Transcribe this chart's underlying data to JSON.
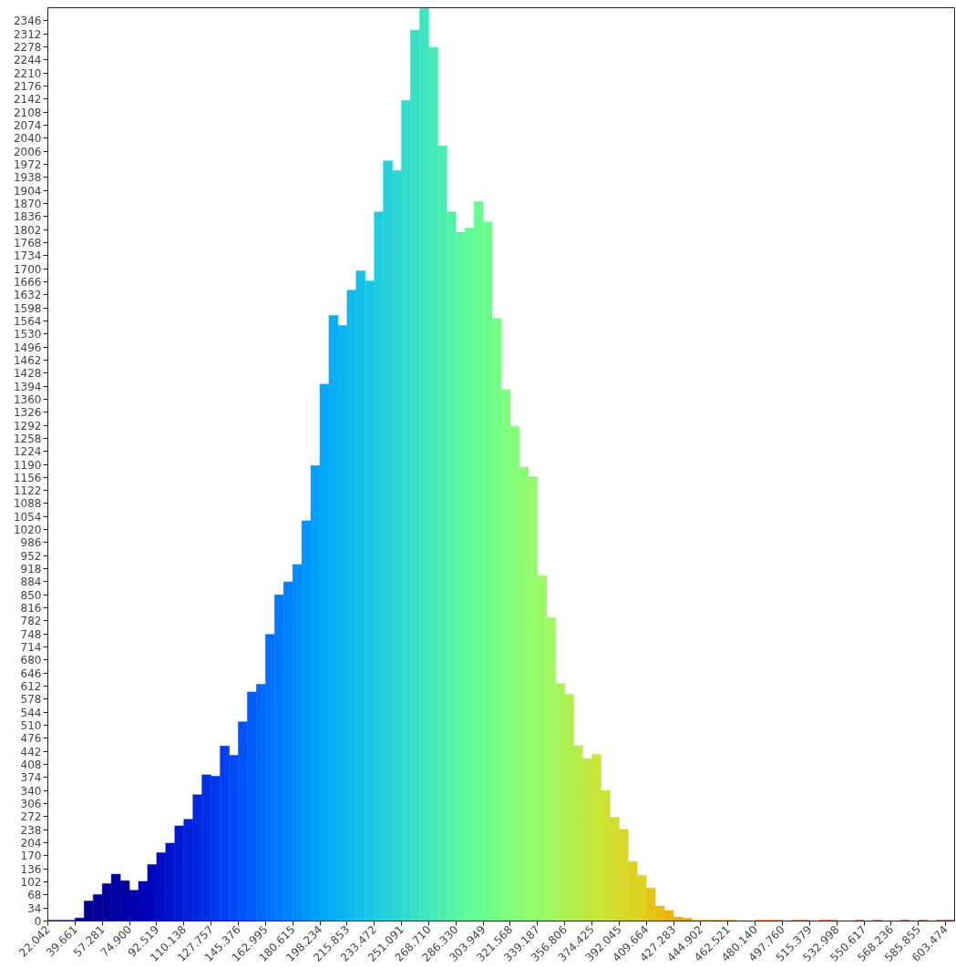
{
  "chart_data": {
    "type": "histogram",
    "bins": [
      22.042,
      27.915,
      33.788,
      39.661,
      45.534,
      51.407,
      57.281,
      63.153,
      69.026,
      74.9,
      80.773,
      86.646,
      92.519,
      98.392,
      104.265,
      110.138,
      116.011,
      121.884,
      127.757,
      133.63,
      139.503,
      145.376,
      151.249,
      157.122,
      162.995,
      168.868,
      174.741,
      180.615,
      186.487,
      192.36,
      198.234,
      204.107,
      209.98,
      215.853,
      221.726,
      227.599,
      233.472,
      239.345,
      245.218,
      251.091,
      256.964,
      262.837,
      268.71,
      274.583,
      280.456,
      286.33,
      292.202,
      298.075,
      303.949,
      309.821,
      315.695,
      321.568,
      327.441,
      333.314,
      339.187,
      345.06,
      350.933,
      356.806,
      362.679,
      368.552,
      374.425,
      380.298,
      386.171,
      392.045,
      397.917,
      403.79,
      409.664,
      415.536,
      421.409,
      427.283,
      433.155,
      439.029,
      444.902,
      450.775,
      456.648,
      462.521,
      468.394,
      474.267,
      480.14,
      486.013,
      491.886,
      497.76,
      503.632,
      509.505,
      515.379,
      521.251,
      527.124,
      532.998,
      538.87,
      544.743,
      550.617,
      556.49,
      562.363,
      568.236,
      574.109,
      579.982,
      585.855,
      591.728,
      597.601,
      603.474,
      609.347
    ],
    "values": [
      2,
      2,
      2,
      8,
      52,
      69,
      97,
      122,
      105,
      80,
      103,
      147,
      178,
      203,
      248,
      265,
      329,
      381,
      377,
      456,
      432,
      519,
      597,
      617,
      747,
      850,
      884,
      929,
      1043,
      1187,
      1399,
      1578,
      1552,
      1644,
      1694,
      1668,
      1848,
      1981,
      1956,
      2138,
      2322,
      2378,
      2277,
      2020,
      1848,
      1795,
      1806,
      1875,
      1822,
      1570,
      1385,
      1289,
      1183,
      1158,
      900,
      790,
      619,
      591,
      457,
      423,
      434,
      340,
      270,
      239,
      155,
      119,
      86,
      39,
      27,
      10,
      7,
      2,
      2,
      2,
      2,
      2,
      0,
      0,
      2,
      2,
      2,
      0,
      2,
      2,
      0,
      2,
      2,
      0,
      0,
      2,
      0,
      2,
      0,
      0,
      2,
      0,
      2,
      0,
      2,
      2
    ],
    "colors": [
      "#000080",
      "#000084",
      "#000088",
      "#00008c",
      "#000090",
      "#000096",
      "#00009c",
      "#0000a2",
      "#0000a8",
      "#0000ae",
      "#0000b4",
      "#0006bb",
      "#000dc2",
      "#0013c9",
      "#001ad1",
      "#0020d8",
      "#0028df",
      "#0030e6",
      "#0038ed",
      "#0040f4",
      "#0048f8",
      "#0052f9",
      "#005cfb",
      "#0066fc",
      "#0070fe",
      "#0078ff",
      "#0082fe",
      "#008cfc",
      "#0096fb",
      "#00a0f9",
      "#00a8f8",
      "#05aef5",
      "#0ab4f2",
      "#0ebbee",
      "#13c1eb",
      "#18c8e8",
      "#1ecde1",
      "#25d2db",
      "#2bd6d4",
      "#32dbce",
      "#38e0c8",
      "#3ee5c0",
      "#44eab8",
      "#4beeb0",
      "#51f3a8",
      "#58f8a0",
      "#5ffa9a",
      "#66fb93",
      "#6cfd8d",
      "#73fe86",
      "#80ff80",
      "#86fe7a",
      "#8cfc73",
      "#93fb6d",
      "#99f966",
      "#a0f860",
      "#a8f458",
      "#b0f050",
      "#b8ec48",
      "#c0e840",
      "#c8e838",
      "#cde334",
      "#d1dd2f",
      "#d6d82b",
      "#dbd226",
      "#e0d020",
      "#e3c61a",
      "#e6bd13",
      "#eab30d",
      "#eda906",
      "#f0a800",
      "#f0a000",
      "#f09800",
      "#f09000",
      "#f08800",
      "#f08000",
      "#ef7a03",
      "#ed7306",
      "#ec6d0a",
      "#ea660d",
      "#e86010",
      "#e65b12",
      "#e55613",
      "#e35215",
      "#e24d16",
      "#e04818",
      "#df431a",
      "#dd3e1b",
      "#dc3a1d",
      "#da351e",
      "#d83020",
      "#d52c20",
      "#d22820",
      "#ce2420",
      "#cb2020",
      "#c82020",
      "#c21e1e",
      "#bc1c1c",
      "#b61a1a",
      "#b01818"
    ],
    "xlim": [
      22.042,
      609.347
    ],
    "ylim": [
      0,
      2380
    ],
    "xticks": [
      {
        "value": 22.042,
        "label": "22.042"
      },
      {
        "value": 39.661,
        "label": "39.661"
      },
      {
        "value": 57.281,
        "label": "57.281"
      },
      {
        "value": 74.9,
        "label": "74.900"
      },
      {
        "value": 92.519,
        "label": "92.519"
      },
      {
        "value": 110.138,
        "label": "110.138"
      },
      {
        "value": 127.757,
        "label": "127.757"
      },
      {
        "value": 145.376,
        "label": "145.376"
      },
      {
        "value": 162.995,
        "label": "162.995"
      },
      {
        "value": 180.615,
        "label": "180.615"
      },
      {
        "value": 198.234,
        "label": "198.234"
      },
      {
        "value": 215.853,
        "label": "215.853"
      },
      {
        "value": 233.472,
        "label": "233.472"
      },
      {
        "value": 251.091,
        "label": "251.091"
      },
      {
        "value": 268.71,
        "label": "268.710"
      },
      {
        "value": 286.33,
        "label": "286.330"
      },
      {
        "value": 303.949,
        "label": "303.949"
      },
      {
        "value": 321.568,
        "label": "321.568"
      },
      {
        "value": 339.187,
        "label": "339.187"
      },
      {
        "value": 356.806,
        "label": "356.806"
      },
      {
        "value": 374.425,
        "label": "374.425"
      },
      {
        "value": 392.045,
        "label": "392.045"
      },
      {
        "value": 409.664,
        "label": "409.664"
      },
      {
        "value": 427.283,
        "label": "427.283"
      },
      {
        "value": 444.902,
        "label": "444.902"
      },
      {
        "value": 462.521,
        "label": "462.521"
      },
      {
        "value": 480.14,
        "label": "480.140"
      },
      {
        "value": 497.76,
        "label": "497.760"
      },
      {
        "value": 515.379,
        "label": "515.379"
      },
      {
        "value": 532.998,
        "label": "532.998"
      },
      {
        "value": 550.617,
        "label": "550.617"
      },
      {
        "value": 568.236,
        "label": "568.236"
      },
      {
        "value": 585.855,
        "label": "585.855"
      },
      {
        "value": 603.474,
        "label": "603.474"
      }
    ],
    "yticks": [
      0,
      34,
      68,
      102,
      136,
      170,
      204,
      238,
      272,
      306,
      340,
      374,
      408,
      442,
      476,
      510,
      544,
      578,
      612,
      646,
      680,
      714,
      748,
      782,
      816,
      850,
      884,
      918,
      952,
      986,
      1020,
      1054,
      1088,
      1122,
      1156,
      1190,
      1224,
      1258,
      1292,
      1326,
      1360,
      1394,
      1428,
      1462,
      1496,
      1530,
      1564,
      1598,
      1632,
      1666,
      1700,
      1734,
      1768,
      1802,
      1836,
      1870,
      1904,
      1938,
      1972,
      2006,
      2040,
      2074,
      2108,
      2142,
      2176,
      2210,
      2244,
      2278,
      2312,
      2346
    ],
    "grid": false
  }
}
